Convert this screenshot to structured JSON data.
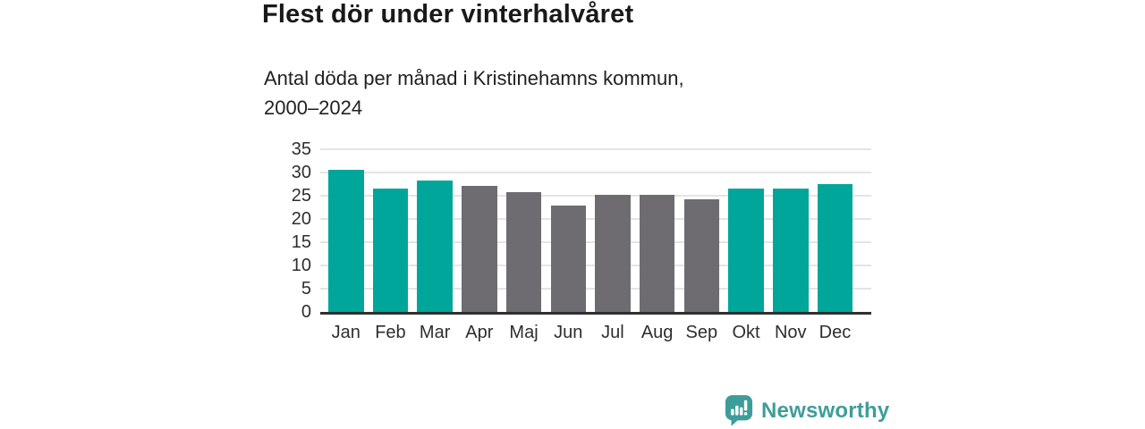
{
  "header": {
    "title": "Flest dör under vinterhalvåret",
    "subtitle_lines": [
      "Antal döda per månad i Kristinehamns kommun,",
      "2000–2024"
    ]
  },
  "chart_data": {
    "type": "bar",
    "title": "Flest dör under vinterhalvåret",
    "subtitle": "Antal döda per månad i Kristinehamns kommun, 2000–2024",
    "categories": [
      "Jan",
      "Feb",
      "Mar",
      "Apr",
      "Maj",
      "Jun",
      "Jul",
      "Aug",
      "Sep",
      "Okt",
      "Nov",
      "Dec"
    ],
    "values": [
      30.5,
      26.5,
      28.3,
      27.1,
      25.7,
      22.8,
      25.1,
      25.2,
      24.2,
      26.5,
      26.5,
      27.5
    ],
    "colors": [
      "#00A69A",
      "#00A69A",
      "#00A69A",
      "#6E6C71",
      "#6E6C71",
      "#6E6C71",
      "#6E6C71",
      "#6E6C71",
      "#6E6C71",
      "#00A69A",
      "#00A69A",
      "#00A69A"
    ],
    "winter_color": "#00A69A",
    "summer_color": "#6E6C71",
    "yticks": [
      0,
      5,
      10,
      15,
      20,
      25,
      30,
      35
    ],
    "ylim": [
      0,
      35
    ],
    "grid": true,
    "grid_color": "#e4e4e4",
    "axis_line_color": "#2f2f2f",
    "tick_label_color": "#2e2e2e",
    "xlabel": "",
    "ylabel": "",
    "legend": "none"
  },
  "branding": {
    "logo_text": "Newsworthy",
    "logo_color": "#3E9D98"
  }
}
